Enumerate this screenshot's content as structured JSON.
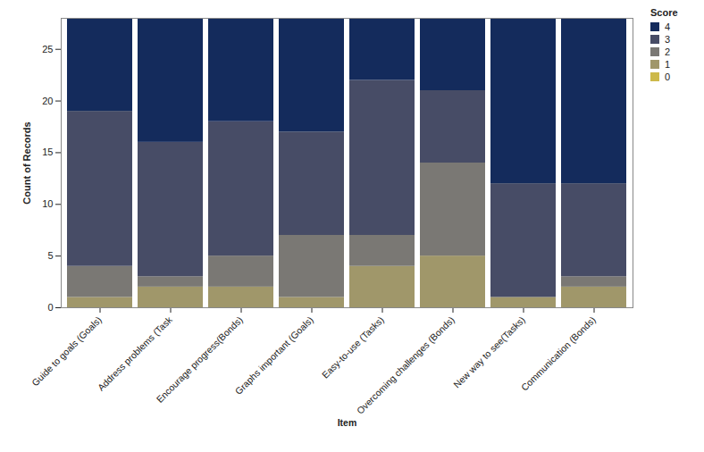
{
  "chart_data": {
    "type": "bar",
    "stacked": true,
    "xlabel": "Item",
    "ylabel": "Count of Records",
    "categories": [
      "Guide to goals (Goals)",
      "Address problems (Task",
      "Encourage progress(Bonds)",
      "Graphs important (Goals)",
      "Easy-to-use (Tasks)",
      "Overcoming challenges (Bonds)",
      "New way to see(Tasks)",
      "Communication (Bonds)"
    ],
    "series": [
      {
        "name": "4",
        "color": "#142b5c",
        "values": [
          9,
          12,
          10,
          11,
          6,
          7,
          16,
          16
        ]
      },
      {
        "name": "3",
        "color": "#474c66",
        "values": [
          15,
          13,
          13,
          10,
          15,
          7,
          11,
          9
        ]
      },
      {
        "name": "2",
        "color": "#7a7874",
        "values": [
          3,
          1,
          3,
          6,
          3,
          9,
          0,
          1
        ]
      },
      {
        "name": "1",
        "color": "#a0976a",
        "values": [
          1,
          2,
          2,
          1,
          4,
          5,
          1,
          2
        ]
      },
      {
        "name": "0",
        "color": "#cdb94a",
        "values": [
          0,
          0,
          0,
          0,
          0,
          0,
          0,
          0
        ]
      }
    ],
    "legend": "top-right",
    "legend_title": "Score",
    "ylim": [
      0,
      28
    ],
    "yticks": [
      0,
      5,
      10,
      15,
      20,
      25
    ],
    "grid": false
  }
}
